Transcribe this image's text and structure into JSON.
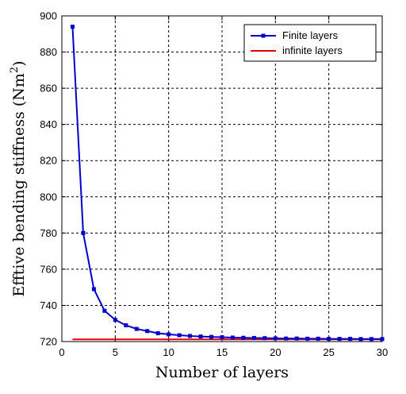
{
  "chart_data": {
    "type": "line",
    "xlabel": "Number of layers",
    "ylabel_main": "Efftive bending stiffness (Nm",
    "ylabel_sup": "2",
    "ylabel_close": ")",
    "xlim": [
      0,
      30
    ],
    "ylim": [
      720,
      900
    ],
    "xticks": [
      0,
      5,
      10,
      15,
      20,
      25,
      30
    ],
    "yticks": [
      720,
      740,
      760,
      780,
      800,
      820,
      840,
      860,
      880,
      900
    ],
    "grid": true,
    "legend_position": "top-right",
    "series": [
      {
        "name": "Finite layers",
        "color": "#0000cc",
        "marker": "square",
        "x": [
          1,
          2,
          3,
          4,
          5,
          6,
          7,
          8,
          9,
          10,
          11,
          12,
          13,
          14,
          15,
          16,
          17,
          18,
          19,
          20,
          21,
          22,
          23,
          24,
          25,
          26,
          27,
          28,
          29,
          30
        ],
        "y": [
          894,
          780,
          749,
          737,
          732,
          729,
          727,
          725.8,
          724.6,
          724,
          723.5,
          723.1,
          722.8,
          722.6,
          722.4,
          722.2,
          722.1,
          722,
          721.9,
          721.8,
          721.7,
          721.7,
          721.6,
          721.6,
          721.5,
          721.5,
          721.5,
          721.4,
          721.4,
          721.4
        ]
      },
      {
        "name": "infinite layers",
        "color": "#e00000",
        "marker": "none",
        "x": [
          1,
          30
        ],
        "y": [
          721.2,
          721.2
        ]
      }
    ]
  }
}
